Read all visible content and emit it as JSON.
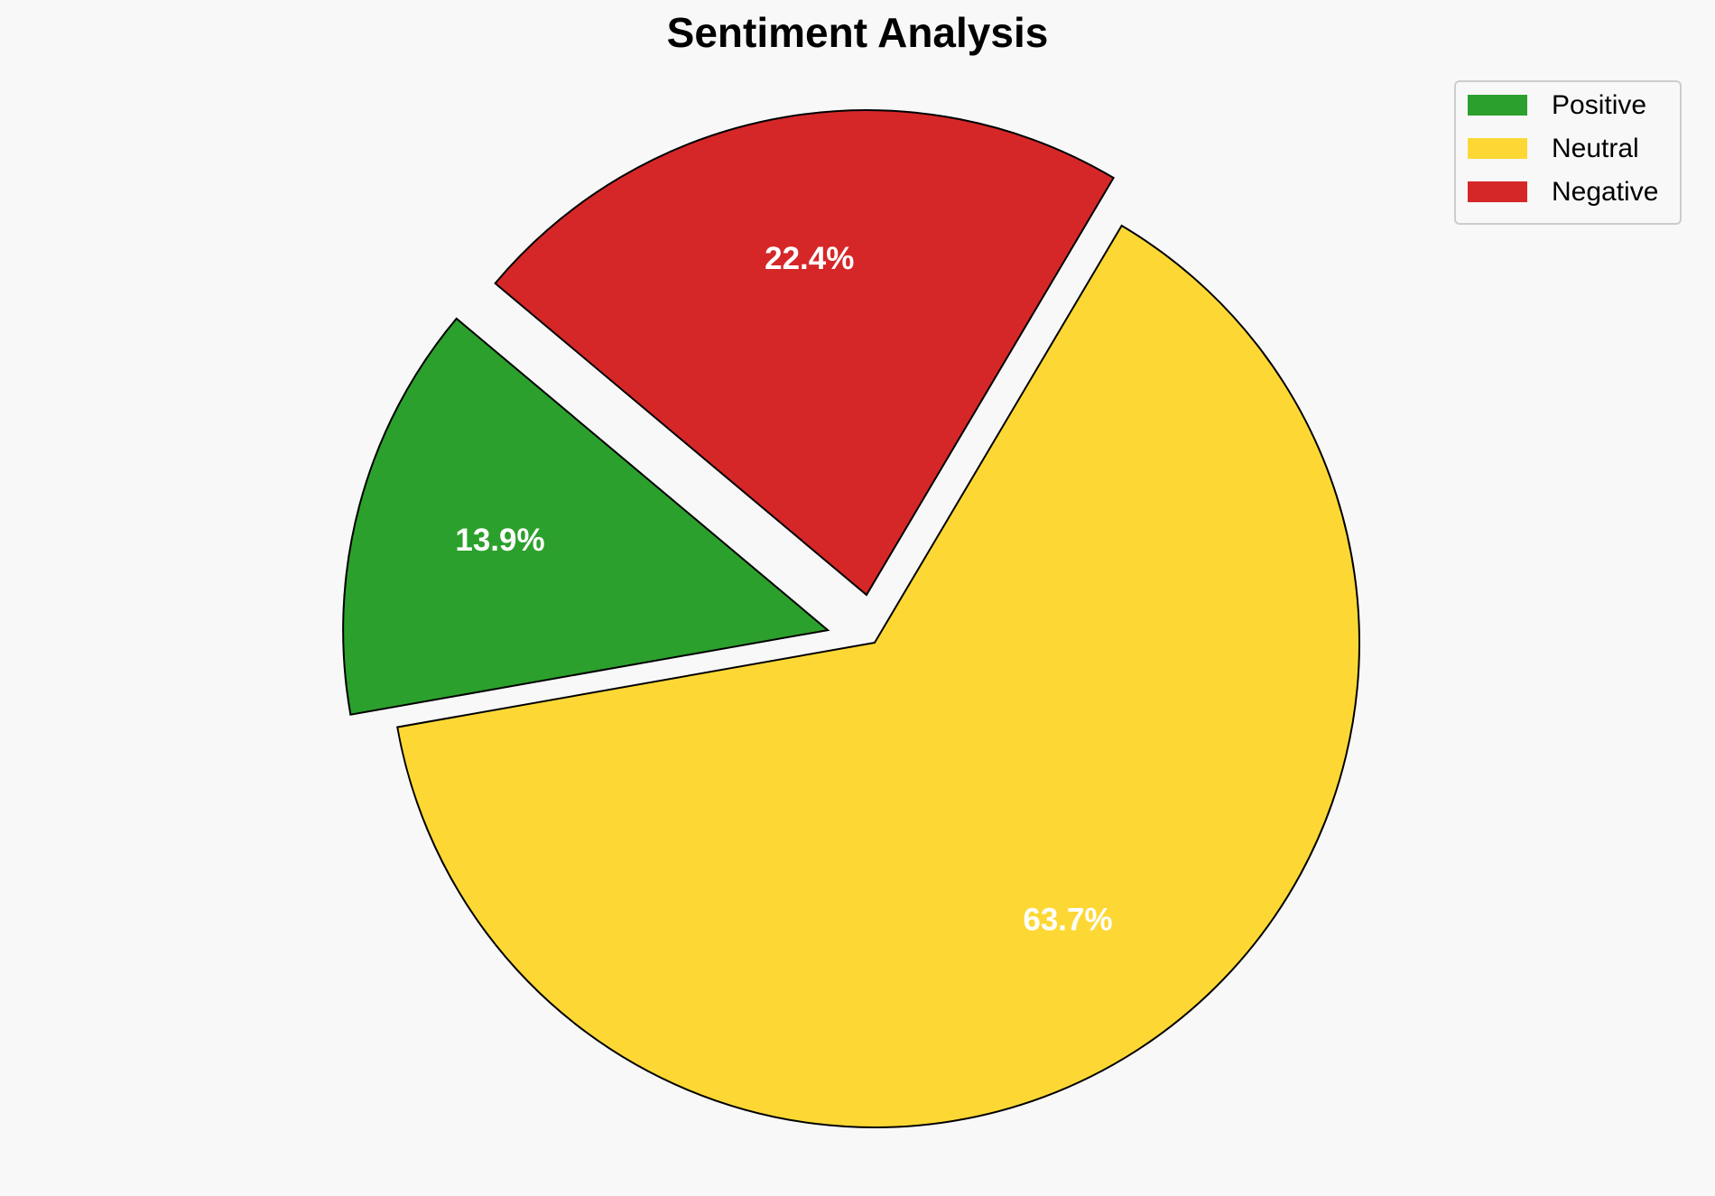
{
  "chart_data": {
    "type": "pie",
    "title": "Sentiment Analysis",
    "categories": [
      "Positive",
      "Neutral",
      "Negative"
    ],
    "values": [
      13.9,
      63.7,
      22.4
    ],
    "value_labels": [
      "13.9%",
      "63.7%",
      "22.4%"
    ],
    "colors": [
      "#2ca02c",
      "#fdd835",
      "#d62728"
    ],
    "explode": [
      0.1,
      0,
      0.1
    ],
    "startangle": 140,
    "legend": "upper right"
  }
}
